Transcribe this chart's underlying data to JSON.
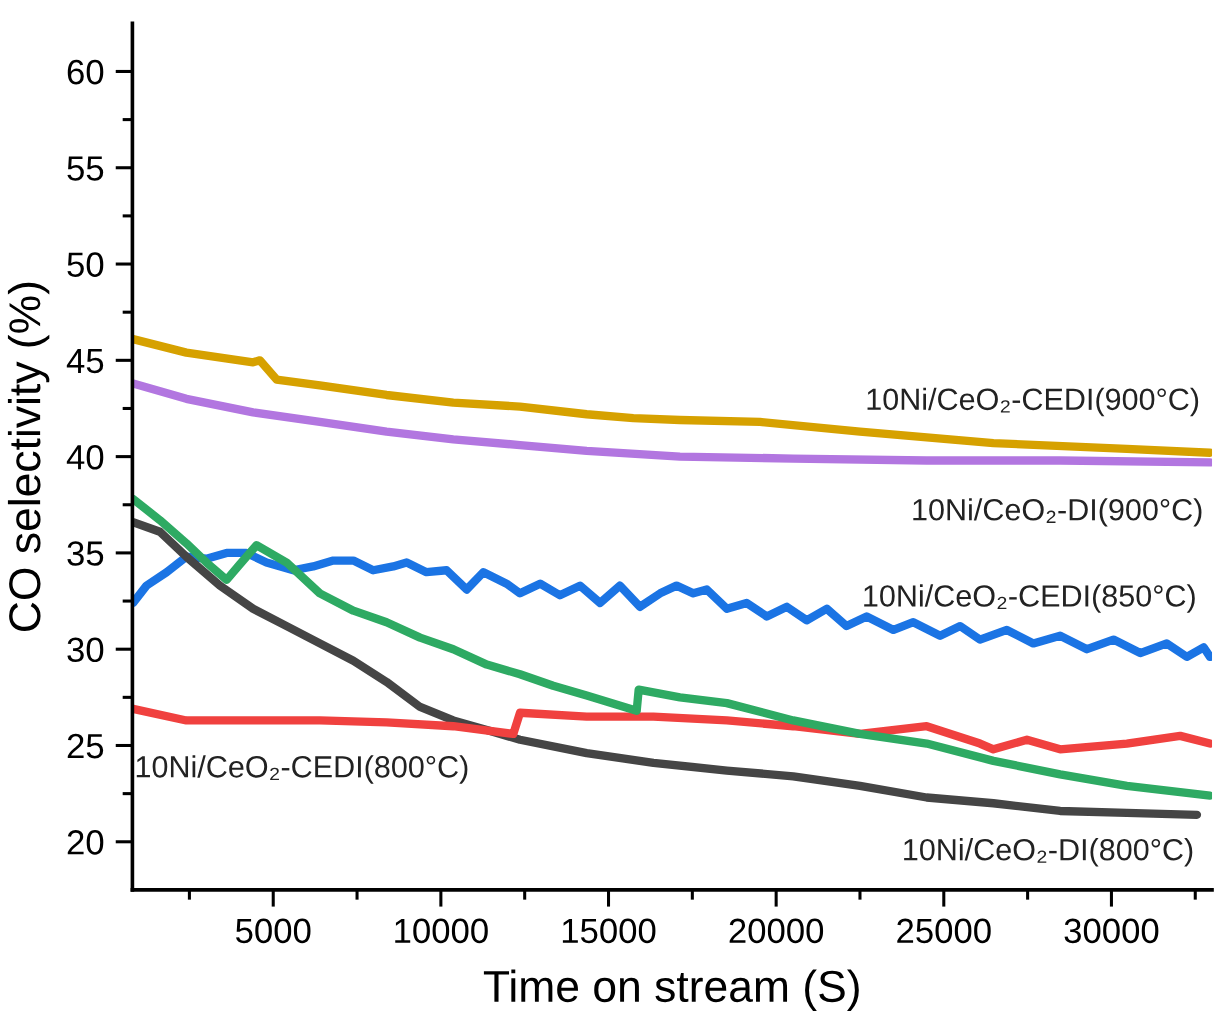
{
  "chart_data": {
    "type": "line",
    "xlabel": "Time on stream (S)",
    "ylabel": "CO selectivity (%)",
    "xlim": [
      800,
      33000
    ],
    "ylim": [
      17.5,
      62.5
    ],
    "xticks": [
      {
        "value": 2500,
        "label": null
      },
      5000,
      {
        "value": 7500,
        "label": null
      },
      10000,
      {
        "value": 12500,
        "label": null
      },
      15000,
      {
        "value": 17500,
        "label": null
      },
      20000,
      {
        "value": 22500,
        "label": null
      },
      25000,
      {
        "value": 27500,
        "label": null
      },
      30000,
      {
        "value": 32500,
        "label": null
      }
    ],
    "yticks": [
      20,
      {
        "value": 22.5,
        "label": null
      },
      25,
      {
        "value": 27.5,
        "label": null
      },
      30,
      {
        "value": 32.5,
        "label": null
      },
      35,
      {
        "value": 37.5,
        "label": null
      },
      40,
      {
        "value": 42.5,
        "label": null
      },
      45,
      {
        "value": 47.5,
        "label": null
      },
      50,
      {
        "value": 52.5,
        "label": null
      },
      55,
      {
        "value": 57.5,
        "label": null
      },
      60
    ],
    "series": [
      {
        "name": "10Ni/CeO₂-CEDI(900°C)",
        "color": "#d6a100",
        "x": [
          820,
          2410,
          4400,
          4600,
          5100,
          6390,
          8380,
          10370,
          12360,
          14350,
          15740,
          17130,
          19520,
          22500,
          26480,
          30460,
          32940
        ],
        "values": [
          46.1,
          45.4,
          44.9,
          45.0,
          44.0,
          43.7,
          43.2,
          42.8,
          42.6,
          42.2,
          42.0,
          41.9,
          41.8,
          41.3,
          40.7,
          40.4,
          40.2
        ]
      },
      {
        "name": "10Ni/CeO₂-DI(900°C)",
        "color": "#b276e0",
        "x": [
          820,
          2410,
          4400,
          6390,
          8380,
          10370,
          12360,
          14350,
          17130,
          20510,
          24490,
          28470,
          32940
        ],
        "values": [
          43.8,
          43.0,
          42.3,
          41.8,
          41.3,
          40.9,
          40.6,
          40.3,
          40.0,
          39.9,
          39.8,
          39.8,
          39.7
        ]
      },
      {
        "name": "10Ni/CeO₂-CEDI(850°C)",
        "color": "#1b74e4",
        "x": [
          820,
          1220,
          1820,
          2410,
          3010,
          3610,
          4200,
          4800,
          5600,
          6190,
          6790,
          7390,
          7980,
          8580,
          8980,
          9570,
          10170,
          10770,
          11270,
          11960,
          12360,
          12960,
          13550,
          14150,
          14750,
          15340,
          15940,
          16540,
          17030,
          17530,
          17930,
          18530,
          19120,
          19720,
          20320,
          20910,
          21510,
          22100,
          22700,
          23500,
          24090,
          24890,
          25490,
          26080,
          26880,
          27670,
          28470,
          29270,
          30060,
          30860,
          31650,
          32250,
          32750,
          32940
        ],
        "values": [
          32.4,
          33.3,
          34.0,
          34.8,
          34.7,
          35.0,
          35.0,
          34.5,
          34.1,
          34.3,
          34.6,
          34.6,
          34.1,
          34.3,
          34.5,
          34.0,
          34.1,
          33.1,
          34.0,
          33.4,
          32.9,
          33.4,
          32.8,
          33.3,
          32.4,
          33.3,
          32.2,
          32.9,
          33.3,
          32.9,
          33.1,
          32.1,
          32.4,
          31.7,
          32.2,
          31.5,
          32.1,
          31.2,
          31.7,
          31.0,
          31.4,
          30.7,
          31.2,
          30.5,
          31.0,
          30.3,
          30.7,
          30.0,
          30.5,
          29.8,
          30.3,
          29.6,
          30.1,
          29.6
        ]
      },
      {
        "name": "10Ni/CeO₂-DI(800°C)",
        "color": "#454545",
        "x": [
          820,
          1620,
          2410,
          3410,
          4400,
          5400,
          6390,
          7390,
          8380,
          9380,
          10370,
          11370,
          12360,
          14350,
          16340,
          18530,
          20510,
          22500,
          24490,
          26480,
          28470,
          30460,
          32550
        ],
        "values": [
          36.6,
          36.1,
          34.8,
          33.3,
          32.1,
          31.2,
          30.3,
          29.4,
          28.3,
          27.0,
          26.3,
          25.8,
          25.3,
          24.6,
          24.1,
          23.7,
          23.4,
          22.9,
          22.3,
          22.0,
          21.6,
          21.5,
          21.4
        ]
      },
      {
        "name": "10Ni/CeO₂-CEDI(800°C)",
        "color": "#f0413f",
        "x": [
          820,
          2410,
          4400,
          6390,
          8380,
          10370,
          12160,
          12360,
          14350,
          16340,
          18530,
          20510,
          22500,
          24490,
          26080,
          26480,
          27480,
          28470,
          30460,
          32050,
          32940
        ],
        "values": [
          26.9,
          26.3,
          26.3,
          26.3,
          26.2,
          26.0,
          25.6,
          26.7,
          26.5,
          26.5,
          26.3,
          26.0,
          25.6,
          26.0,
          25.1,
          24.8,
          25.3,
          24.8,
          25.1,
          25.5,
          25.1
        ]
      },
      {
        "color": "#2eaa63",
        "x": [
          820,
          1620,
          2410,
          3010,
          3610,
          4000,
          4500,
          5400,
          6390,
          7390,
          8380,
          9380,
          10370,
          11370,
          12360,
          13350,
          14350,
          15840,
          15900,
          17130,
          18530,
          20510,
          22500,
          24490,
          26480,
          28470,
          30460,
          32940
        ],
        "values": [
          37.8,
          36.7,
          35.5,
          34.5,
          33.6,
          34.4,
          35.4,
          34.5,
          32.9,
          32.0,
          31.4,
          30.6,
          30.0,
          29.2,
          28.7,
          28.1,
          27.6,
          26.8,
          27.9,
          27.5,
          27.2,
          26.3,
          25.6,
          25.1,
          24.2,
          23.5,
          22.9,
          22.4
        ]
      }
    ]
  }
}
